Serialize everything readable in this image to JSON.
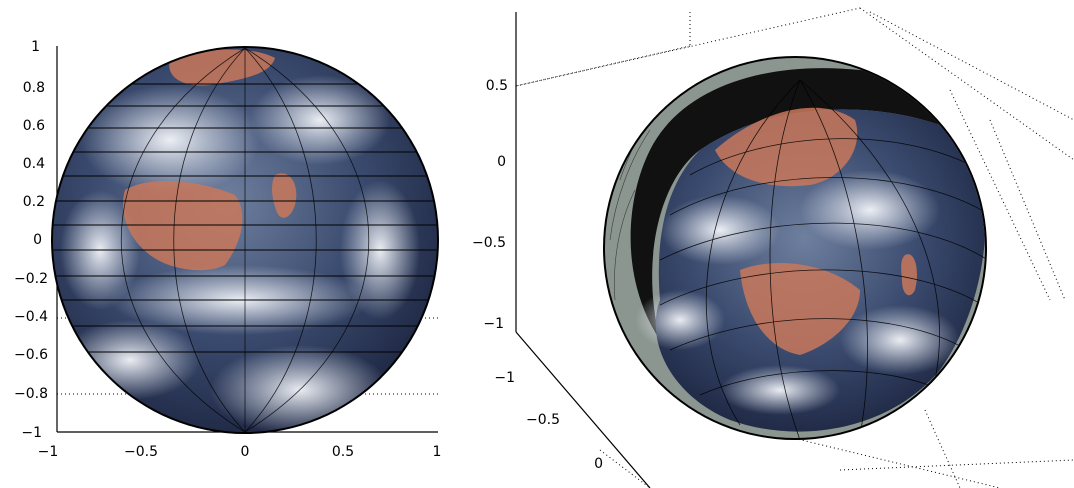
{
  "left_figure": {
    "y_ticks": [
      "1",
      "0.8",
      "0.6",
      "0.4",
      "0.2",
      "0",
      "−0.2",
      "−0.4",
      "−0.6",
      "−0.8",
      "−1"
    ],
    "x_ticks": [
      "−1",
      "−0.5",
      "0",
      "0.5",
      "1"
    ]
  },
  "right_figure": {
    "z_ticks": [
      "0.5",
      "0",
      "−0.5",
      "−1"
    ],
    "y_ticks": [
      "−1",
      "−0.5",
      "0"
    ]
  },
  "colors": {
    "ocean": "#2b3a5c",
    "cloud": "#e8ecf2",
    "land": "#c9785a",
    "shell": "#8c9690",
    "terminator": "#111111"
  }
}
